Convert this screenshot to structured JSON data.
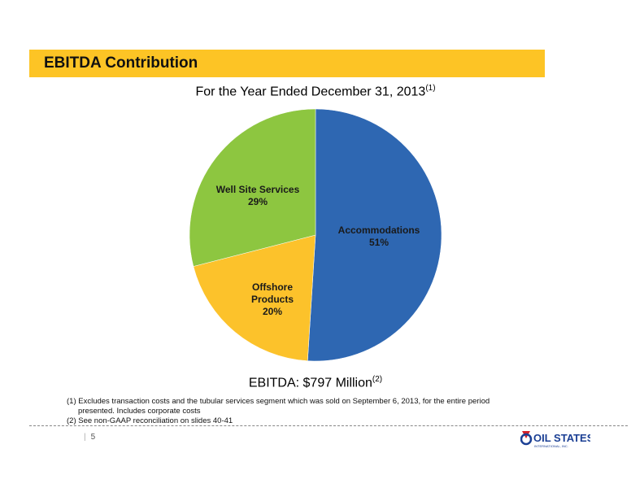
{
  "header": {
    "title": "EBITDA Contribution"
  },
  "chart_data": {
    "type": "pie",
    "subtitle": "For the Year Ended December 31, 2013",
    "subtitle_note": "(1)",
    "slices": [
      {
        "name": "Accommodations",
        "value": 51,
        "label": "51%",
        "color": "#2e67b2"
      },
      {
        "name": "Offshore Products",
        "value": 20,
        "label": "20%",
        "color": "#fcc22b"
      },
      {
        "name": "Well Site Services",
        "value": 29,
        "label": "29%",
        "color": "#8dc640"
      }
    ],
    "total_label": "EBITDA: $797 Million",
    "total_note": "(2)"
  },
  "footnotes": {
    "note1_line1": "(1)  Excludes transaction costs and the tubular services segment which was sold on September 6, 2013, for the entire period",
    "note1_line2": "presented. Includes corporate costs",
    "note2": "(2)  See non-GAAP reconciliation on slides 40-41"
  },
  "footer": {
    "page_number": "5",
    "logo_text": "OIL STATES",
    "logo_subtext": "INTERNATIONAL, INC.",
    "brand_color": "#1b3f94",
    "brand_red": "#d42027"
  }
}
